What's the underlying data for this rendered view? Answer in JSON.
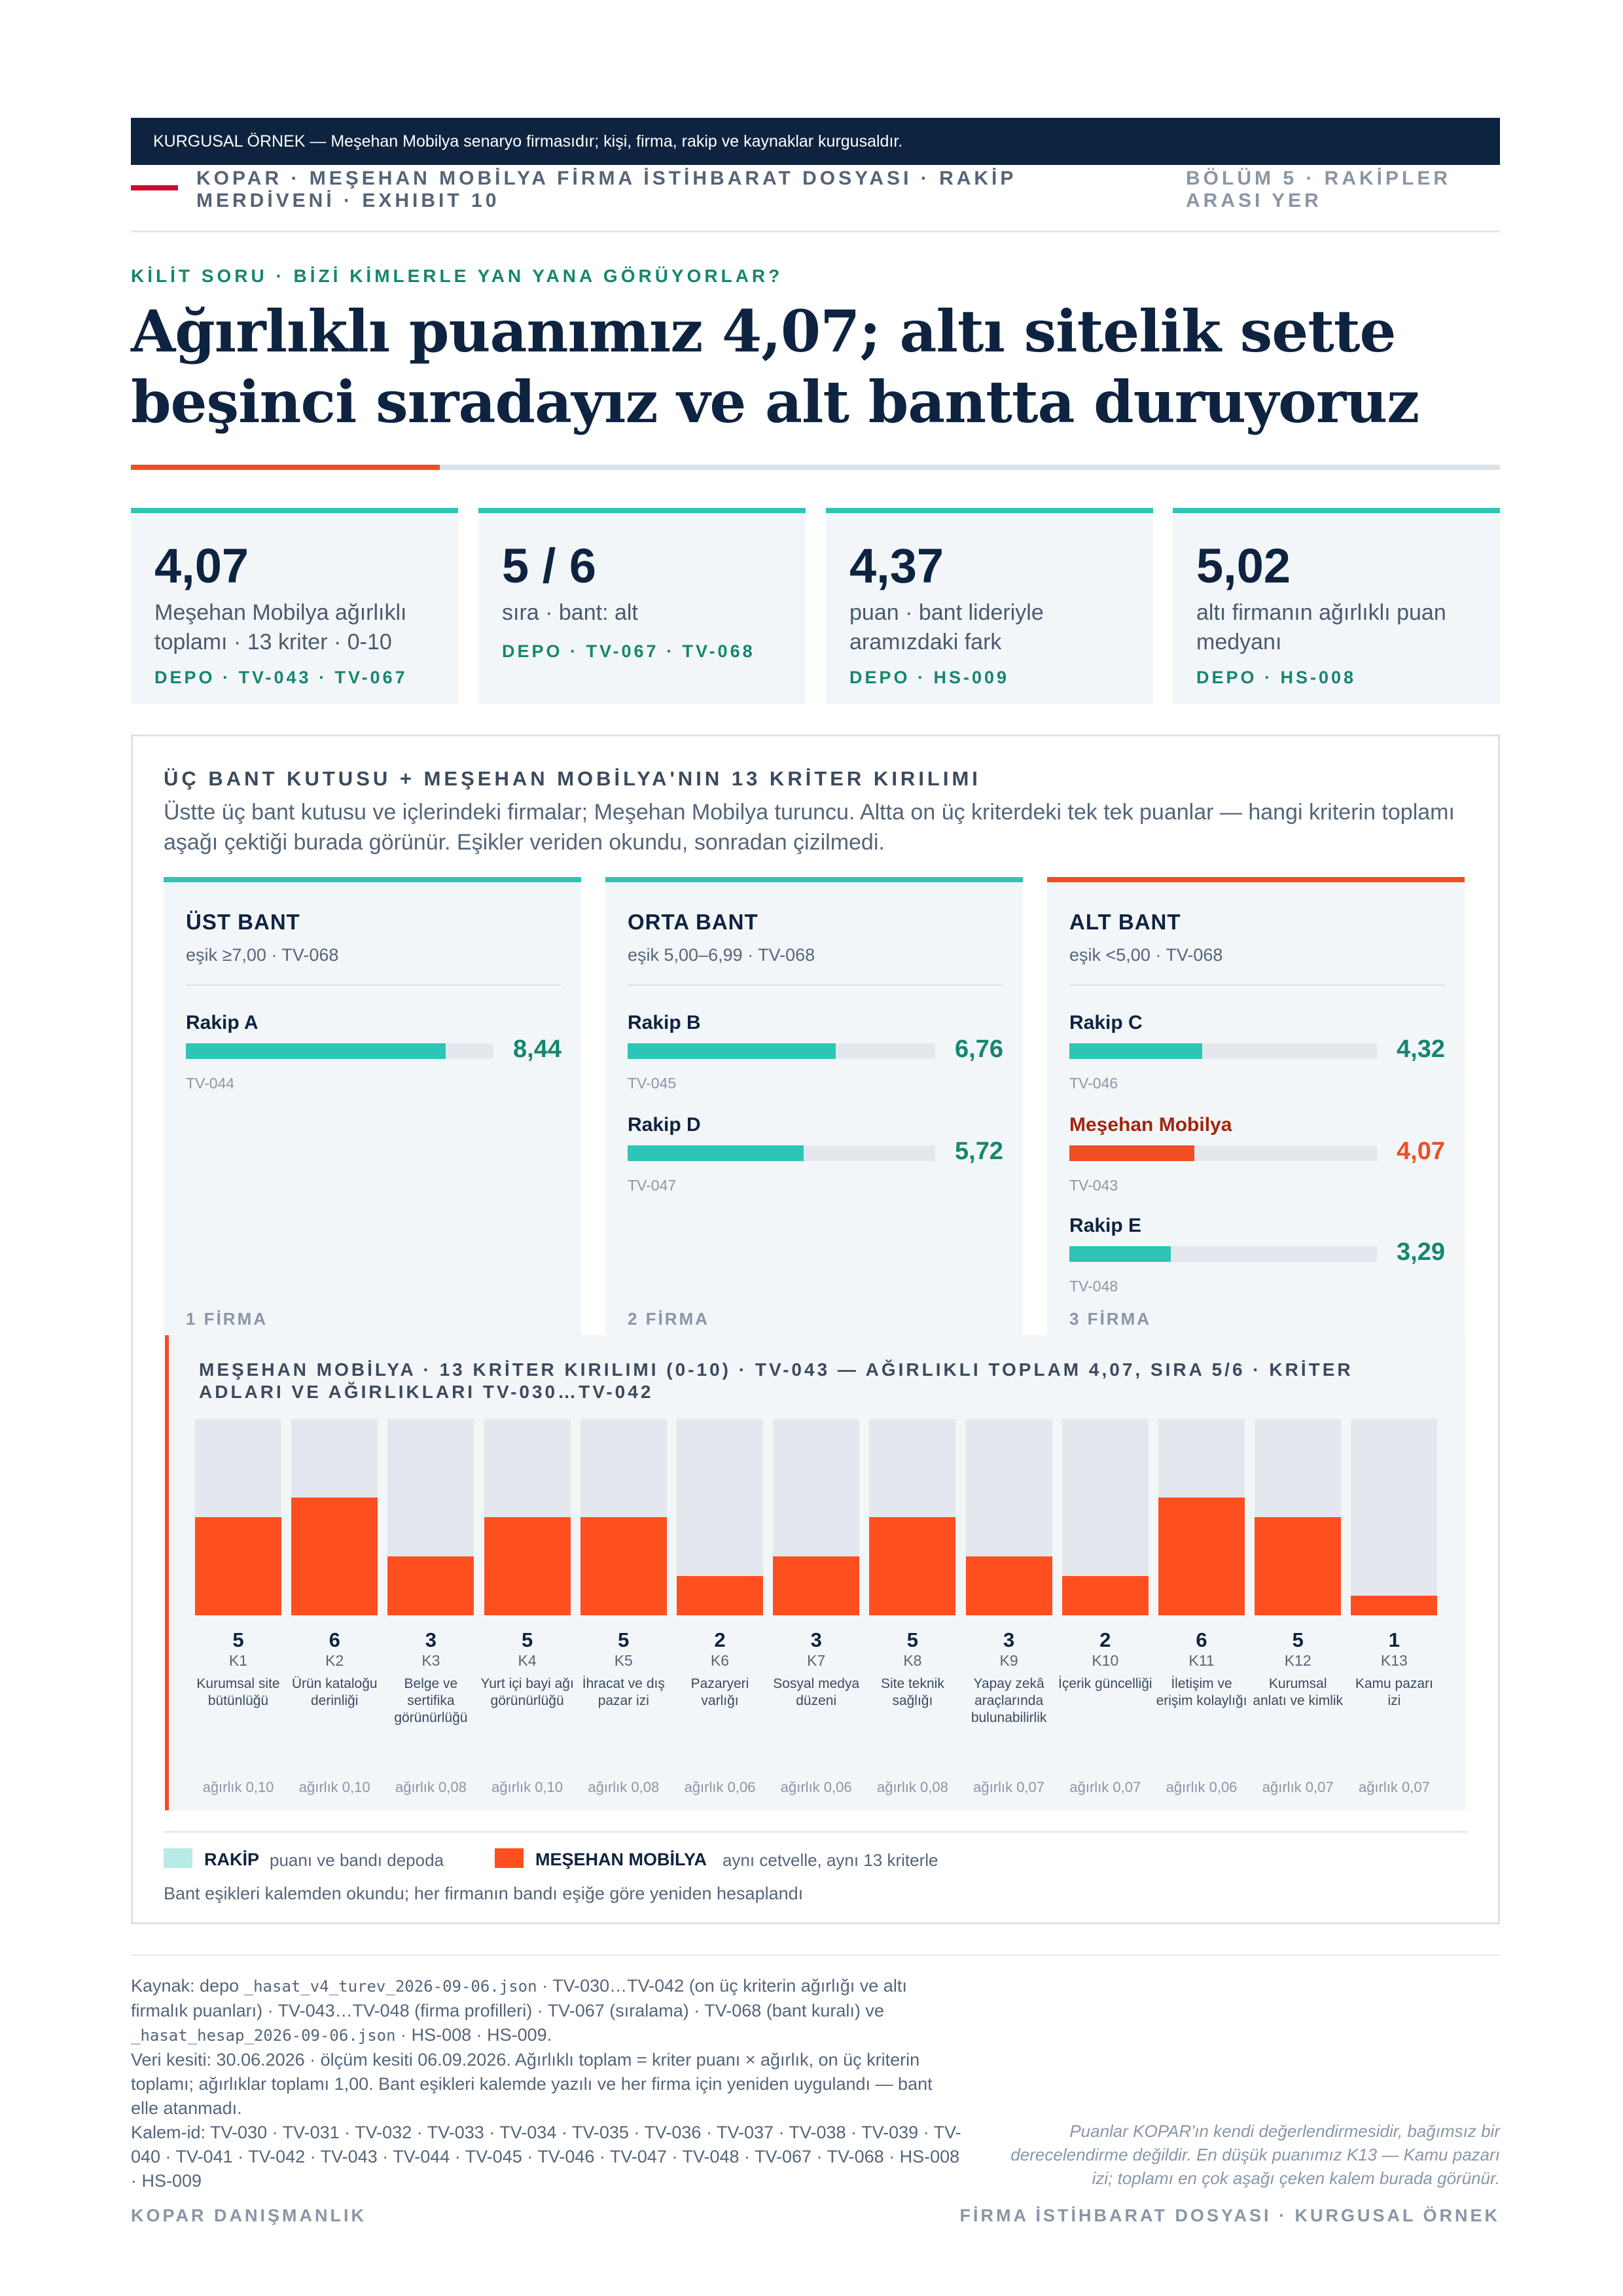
{
  "banner": "KURGUSAL ÖRNEK — Meşehan Mobilya senaryo firmasıdır; kişi, firma, rakip ve kaynaklar kurgusaldır.",
  "running_head": "KOPAR · MEŞEHAN MOBİLYA FİRMA İSTİHBARAT DOSYASI · RAKİP MERDİVENİ · EXHIBIT 10",
  "section": "BÖLÜM 5 · RAKİPLER ARASI YER",
  "kicker": "KİLİT SORU · BİZİ KİMLERLE YAN YANA GÖRÜYORLAR?",
  "title": "Ağırlıklı puanımız 4,07; altı sitelik sette beşinci sıradayız ve alt bantta duruyoruz",
  "stats": [
    {
      "value": "4,07",
      "label": "Meşehan Mobilya ağırlıklı toplamı · 13 kriter · 0-10",
      "source": "DEPO · TV-043 · TV-067"
    },
    {
      "value": "5 / 6",
      "label": "sıra · bant: alt",
      "source": "DEPO · TV-067 · TV-068"
    },
    {
      "value": "4,37",
      "label": "puan · bant lideriyle aramızdaki fark",
      "source": "DEPO · HS-009"
    },
    {
      "value": "5,02",
      "label": "altı firmanın ağırlıklı puan medyanı",
      "source": "DEPO · HS-008"
    }
  ],
  "panel": {
    "title": "ÜÇ BANT KUTUSU + MEŞEHAN MOBİLYA'NIN 13 KRİTER KIRILIMI",
    "description": "Üstte üç bant kutusu ve içlerindeki firmalar; Meşehan Mobilya turuncu. Altta on üç kriterdeki tek tek puanlar — hangi kriterin toplamı aşağı çektiği burada görünür. Eşikler veriden okundu, sonradan çizilmedi."
  },
  "bands": [
    {
      "name": "ÜST BANT",
      "threshold": "eşik ≥7,00 · TV-068",
      "count": "1 FİRMA",
      "firms": [
        {
          "name": "Rakip A",
          "score": "8,44",
          "value": 8.44,
          "id": "TV-044",
          "self": false
        }
      ]
    },
    {
      "name": "ORTA BANT",
      "threshold": "eşik 5,00–6,99 · TV-068",
      "count": "2 FİRMA",
      "firms": [
        {
          "name": "Rakip B",
          "score": "6,76",
          "value": 6.76,
          "id": "TV-045",
          "self": false
        },
        {
          "name": "Rakip D",
          "score": "5,72",
          "value": 5.72,
          "id": "TV-047",
          "self": false
        }
      ]
    },
    {
      "name": "ALT BANT",
      "threshold": "eşik <5,00 · TV-068",
      "count": "3 FİRMA",
      "firms": [
        {
          "name": "Rakip C",
          "score": "4,32",
          "value": 4.32,
          "id": "TV-046",
          "self": false
        },
        {
          "name": "Meşehan Mobilya",
          "score": "4,07",
          "value": 4.07,
          "id": "TV-043",
          "self": true
        },
        {
          "name": "Rakip E",
          "score": "3,29",
          "value": 3.29,
          "id": "TV-048",
          "self": false
        }
      ]
    }
  ],
  "criteria_title": "MEŞEHAN MOBİLYA · 13 KRİTER KIRILIMI (0-10) · TV-043 — AĞIRLIKLI TOPLAM 4,07, SIRA 5/6 · KRİTER ADLARI VE AĞIRLIKLARI TV-030…TV-042",
  "chart_data": {
    "type": "bar",
    "categories": [
      "K1",
      "K2",
      "K3",
      "K4",
      "K5",
      "K6",
      "K7",
      "K8",
      "K9",
      "K10",
      "K11",
      "K12",
      "K13"
    ],
    "criterion_names": [
      "Kurumsal site bütünlüğü",
      "Ürün kataloğu derinliği",
      "Belge ve sertifika görünürlüğü",
      "Yurt içi bayi ağı görünürlüğü",
      "İhracat ve dış pazar izi",
      "Pazaryeri varlığı",
      "Sosyal medya düzeni",
      "Site teknik sağlığı",
      "Yapay zekâ araçlarında bulunabilirlik",
      "İçerik güncelliği",
      "İletişim ve erişim kolaylığı",
      "Kurumsal anlatı ve kimlik",
      "Kamu pazarı izi"
    ],
    "values": [
      5,
      6,
      3,
      5,
      5,
      2,
      3,
      5,
      3,
      2,
      6,
      5,
      1
    ],
    "weights": [
      "ağırlık 0,10",
      "ağırlık 0,10",
      "ağırlık 0,08",
      "ağırlık 0,10",
      "ağırlık 0,08",
      "ağırlık 0,06",
      "ağırlık 0,06",
      "ağırlık 0,08",
      "ağırlık 0,07",
      "ağırlık 0,07",
      "ağırlık 0,06",
      "ağırlık 0,07",
      "ağırlık 0,07"
    ],
    "ylim": [
      0,
      10
    ]
  },
  "legend": {
    "rival_key": "RAKİP",
    "rival_text": "puanı ve bandı depoda",
    "self_key": "MEŞEHAN MOBİLYA",
    "self_text": "aynı cetvelle, aynı 13 kriterle",
    "note": "Bant eşikleri kalemden okundu; her firmanın bandı eşiğe göre yeniden hesaplandı"
  },
  "colors": {
    "teal": "#2ec4b6",
    "orange": "#f04e23",
    "navy": "#0e2340"
  },
  "footer": {
    "src_a": "Kaynak: depo ",
    "file1": "_hasat_v4_turev_2026-09-06.json",
    "src_b": " · TV-030…TV-042 (on üç kriterin ağırlığı ve altı firmalık puanları) · TV-043…TV-048 (firma profilleri) · TV-067 (sıralama) · TV-068 (bant kuralı) ve ",
    "file2": "_hasat_hesap_2026-09-06.json",
    "src_c": " · HS-008 · HS-009.",
    "cutoff": "Veri kesiti: 30.06.2026 · ölçüm kesiti 06.09.2026. Ağırlıklı toplam = kriter puanı × ağırlık, on üç kriterin toplamı; ağırlıklar toplamı 1,00. Bant eşikleri kalemde yazılı ve her firma için yeniden uygulandı — bant elle atanmadı.",
    "ids": "Kalem-id: TV-030 · TV-031 · TV-032 · TV-033 · TV-034 · TV-035 · TV-036 · TV-037 · TV-038 · TV-039 · TV-040 · TV-041 · TV-042 · TV-043 · TV-044 · TV-045 · TV-046 · TV-047 · TV-048 · TV-067 · TV-068 · HS-008 · HS-009",
    "disclaimer": "Puanlar KOPAR'ın kendi değerlendirmesidir, bağımsız bir derecelendirme değildir. En düşük puanımız K13 — Kamu pazarı izi; toplamı en çok aşağı çeken kalem burada görünür.",
    "brand_left": "KOPAR DANIŞMANLIK",
    "brand_right": "FİRMA İSTİHBARAT DOSYASI · KURGUSAL ÖRNEK"
  }
}
